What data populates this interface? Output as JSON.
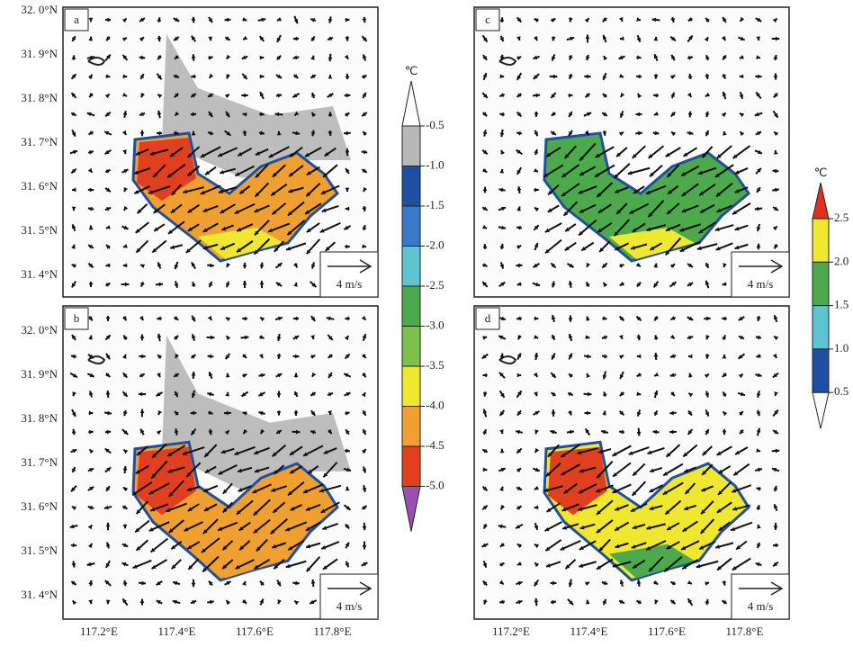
{
  "panels": [
    {
      "label": "a",
      "scale_label": "4 m/s"
    },
    {
      "label": "b",
      "scale_label": "4 m/s"
    },
    {
      "label": "c",
      "scale_label": "4 m/s"
    },
    {
      "label": "d",
      "scale_label": "4 m/s"
    }
  ],
  "y_axes": [
    {
      "ticks": [
        "32. 0°N",
        "31. 9°N",
        "31. 8°N",
        "31. 7°N",
        "31. 6°N",
        "31. 5°N",
        "31. 4°N"
      ]
    },
    {
      "ticks": [
        "32. 0°N",
        "31. 9°N",
        "31. 8°N",
        "31. 7°N",
        "31. 6°N",
        "31. 5°N",
        "31. 4°N"
      ]
    }
  ],
  "x_axes": [
    {
      "ticks": [
        "117.2°E",
        "117.4°E",
        "117.6°E",
        "117.8°E"
      ]
    },
    {
      "ticks": [
        "117.2°E",
        "117.4°E",
        "117.6°E",
        "117.8°E"
      ]
    }
  ],
  "colorbars": [
    {
      "unit": "℃",
      "labels": [
        "-0.5",
        "-1.0",
        "-1.5",
        "-2.0",
        "-2.5",
        "-3.0",
        "-3.5",
        "-4.0",
        "-4.5",
        "-5.0"
      ],
      "colors": [
        "#ffffff",
        "#b8b8b8",
        "#1f4fa0",
        "#3a78c8",
        "#5ec4d0",
        "#4caa4c",
        "#7cc24a",
        "#f0e830",
        "#f0a030",
        "#e04020",
        "#9a50b0"
      ]
    },
    {
      "unit": "℃",
      "labels": [
        "2.5",
        "2.0",
        "1.5",
        "1.0",
        "0.5"
      ],
      "colors": [
        "#e03020",
        "#f0e830",
        "#4caa4c",
        "#5ec4d0",
        "#1f4fa0",
        "#ffffff"
      ]
    }
  ]
}
